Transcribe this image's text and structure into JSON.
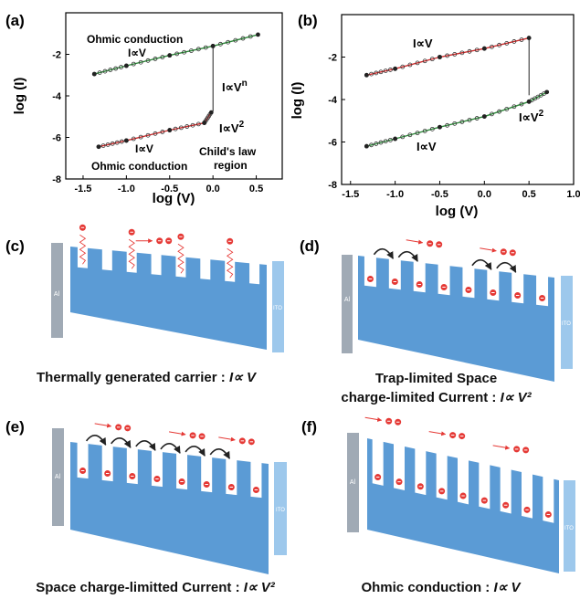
{
  "chart_data": [
    {
      "panel": "(a)",
      "type": "line",
      "xlabel": "log (V)",
      "ylabel": "log (I)",
      "xlim": [
        -1.7,
        0.8
      ],
      "ylim": [
        -8,
        0
      ],
      "xticks": [
        "-1.5",
        "-1.0",
        "-0.5",
        "0.0",
        "0.5"
      ],
      "yticks": [
        "-8",
        "-6",
        "-4",
        "-2"
      ],
      "series": [
        {
          "color": "#2e8b3a",
          "points": [
            [
              -1.37,
              -2.95
            ],
            [
              -1.0,
              -2.55
            ],
            [
              -0.5,
              -2.05
            ],
            [
              0.0,
              -1.6
            ],
            [
              0.52,
              -1.05
            ]
          ]
        },
        {
          "color": "#d02a2a",
          "points": [
            [
              -1.32,
              -6.45
            ],
            [
              -1.0,
              -6.15
            ],
            [
              -0.5,
              -5.65
            ],
            [
              -0.1,
              -5.3
            ],
            [
              -0.02,
              -4.8
            ]
          ]
        },
        {
          "color": "#222222",
          "points": [
            [
              0.0,
              -4.75
            ],
            [
              0.0,
              -1.55
            ]
          ]
        }
      ],
      "annotations": {
        "top_label": "Ohmic conduction",
        "top_law": "I∝V",
        "mid_law": "I∝V",
        "mid_exp": "n",
        "low_law1": "I∝V",
        "low_law1_exp": "2",
        "low_law2": "I∝V",
        "low_label": "Ohmic conduction",
        "child1": "Child's law",
        "child2": "region"
      }
    },
    {
      "panel": "(b)",
      "type": "line",
      "xlabel": "log (V)",
      "ylabel": "log (I)",
      "xlim": [
        -1.6,
        1.0
      ],
      "ylim": [
        -8,
        0
      ],
      "xticks": [
        "-1.5",
        "-1.0",
        "-0.5",
        "0.0",
        "0.5",
        "1.0"
      ],
      "yticks": [
        "-8",
        "-6",
        "-4",
        "-2"
      ],
      "series": [
        {
          "color": "#d02a2a",
          "points": [
            [
              -1.32,
              -2.85
            ],
            [
              -1.0,
              -2.55
            ],
            [
              -0.5,
              -2.0
            ],
            [
              0.0,
              -1.6
            ],
            [
              0.5,
              -1.1
            ]
          ]
        },
        {
          "color": "#2e8b3a",
          "points": [
            [
              -1.32,
              -6.2
            ],
            [
              -1.0,
              -5.85
            ],
            [
              -0.5,
              -5.3
            ],
            [
              0.0,
              -4.8
            ],
            [
              0.5,
              -4.1
            ],
            [
              0.7,
              -3.65
            ]
          ]
        },
        {
          "color": "#222222",
          "points": [
            [
              0.5,
              -1.1
            ],
            [
              0.5,
              -3.8
            ]
          ]
        }
      ],
      "annotations": {
        "top_law": "I∝V",
        "right_law": "I∝V",
        "right_exp": "2",
        "low_law": "I∝V"
      }
    }
  ],
  "panels": {
    "c": {
      "label": "(c)",
      "left": "Al",
      "right": "ITO"
    },
    "d": {
      "label": "(d)",
      "left": "Al",
      "right": "ITO"
    },
    "e": {
      "label": "(e)",
      "left": "Al",
      "right": "ITO"
    },
    "f": {
      "label": "(f)",
      "left": "Al",
      "right": "ITO"
    }
  },
  "captions": {
    "c_text": "Thermally generated carrier : ",
    "c_law": "I∝ V",
    "d_line1": "Trap-limited Space",
    "d_text": "charge-limited Current : ",
    "d_law": "I∝ V²",
    "e_text": "Space charge-limitted Current : ",
    "e_law": "I∝ V²",
    "f_text": "Ohmic conduction : ",
    "f_law": "I∝ V"
  },
  "colors": {
    "band": "#5b9bd5",
    "al": "#a0aab5",
    "ito": "#9dc8ec",
    "electron": "#e53935",
    "hole_marker": "#e53935",
    "arrow": "#e53935",
    "hop": "#222222"
  }
}
